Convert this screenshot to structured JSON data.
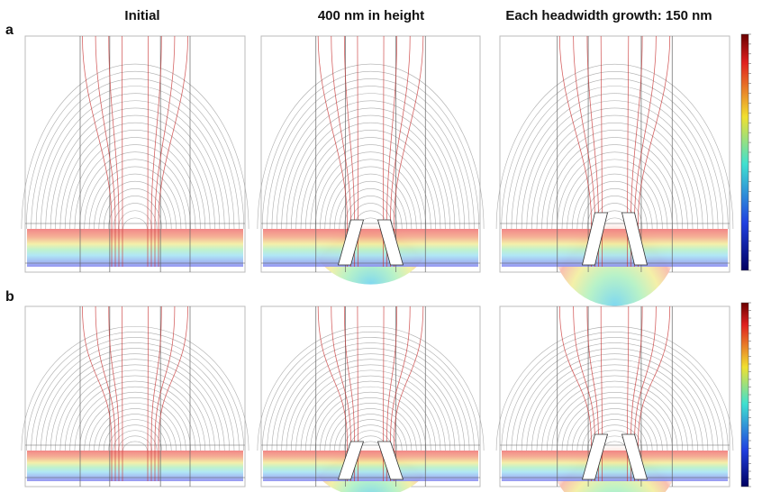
{
  "columns": [
    "Initial",
    "400 nm in height",
    "Each headwidth growth: 150 nm"
  ],
  "rows": [
    "a",
    "b"
  ]
}
